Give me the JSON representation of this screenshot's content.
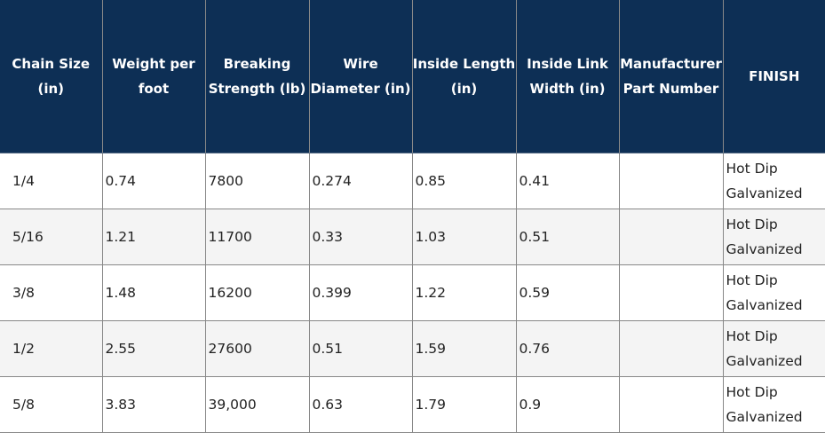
{
  "table": {
    "headers": [
      "Chain Size (in)",
      "Weight per foot",
      "Breaking Strength (lb)",
      "Wire Diameter (in)",
      "Inside Length (in)",
      "Inside Link Width (in)",
      "Manufacturer Part Number",
      "FINISH"
    ],
    "rows": [
      [
        "1/4",
        "0.74",
        "7800",
        "0.274",
        "0.85",
        "0.41",
        "",
        "Hot Dip Galvanized"
      ],
      [
        "5/16",
        "1.21",
        "11700",
        "0.33",
        "1.03",
        "0.51",
        "",
        "Hot Dip Galvanized"
      ],
      [
        "3/8",
        "1.48",
        "16200",
        "0.399",
        "1.22",
        "0.59",
        "",
        "Hot Dip Galvanized"
      ],
      [
        "1/2",
        "2.55",
        "27600",
        "0.51",
        "1.59",
        "0.76",
        "",
        "Hot Dip Galvanized"
      ],
      [
        "5/8",
        "3.83",
        "39,000",
        "0.63",
        "1.79",
        "0.9",
        "",
        "Hot Dip Galvanized"
      ]
    ]
  },
  "colors": {
    "header_bg": "#0d2f55",
    "header_text": "#ffffff",
    "alt_row_bg": "#f4f4f4",
    "grid_line": "#888888"
  }
}
